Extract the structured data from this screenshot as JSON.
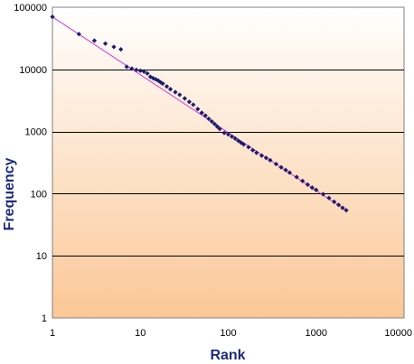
{
  "chart_data": {
    "type": "scatter",
    "title": "",
    "xlabel": "Rank",
    "ylabel": "Frequency",
    "x_scale": "log",
    "y_scale": "log",
    "xlim": [
      1,
      10000
    ],
    "ylim": [
      1,
      100000
    ],
    "x_ticks": [
      "1",
      "10",
      "100",
      "1000",
      "10000"
    ],
    "y_ticks": [
      "1",
      "10",
      "100",
      "1000",
      "10000",
      "100000"
    ],
    "grid": "horizontal major gridlines",
    "legend": "none",
    "colors": {
      "points": "#1c1c6e",
      "trendline": "#d63ad6",
      "axis_title": "#1c2a7e",
      "background_top": "#ffffff",
      "background_bottom": "#fbc796"
    },
    "series": [
      {
        "values": [
          [
            1,
            70000
          ],
          [
            2,
            37000
          ],
          [
            3,
            29000
          ],
          [
            4,
            26000
          ],
          [
            5,
            23000
          ],
          [
            6,
            21000
          ],
          [
            7,
            11000
          ],
          [
            8,
            10300
          ],
          [
            9,
            9800
          ],
          [
            10,
            9500
          ],
          [
            11,
            9200
          ],
          [
            12,
            8600
          ],
          [
            13,
            7600
          ],
          [
            14,
            7200
          ],
          [
            15,
            6900
          ],
          [
            16,
            6600
          ],
          [
            17,
            6200
          ],
          [
            18,
            5900
          ],
          [
            20,
            5300
          ],
          [
            22,
            4800
          ],
          [
            25,
            4300
          ],
          [
            28,
            3900
          ],
          [
            32,
            3400
          ],
          [
            36,
            3000
          ],
          [
            40,
            2700
          ],
          [
            45,
            2300
          ],
          [
            50,
            2000
          ],
          [
            55,
            1800
          ],
          [
            60,
            1600
          ],
          [
            65,
            1450
          ],
          [
            70,
            1320
          ],
          [
            75,
            1200
          ],
          [
            80,
            1100
          ],
          [
            90,
            950
          ],
          [
            100,
            900
          ],
          [
            110,
            830
          ],
          [
            120,
            770
          ],
          [
            130,
            710
          ],
          [
            140,
            660
          ],
          [
            150,
            620
          ],
          [
            170,
            560
          ],
          [
            190,
            500
          ],
          [
            210,
            455
          ],
          [
            240,
            410
          ],
          [
            270,
            375
          ],
          [
            300,
            345
          ],
          [
            350,
            300
          ],
          [
            400,
            265
          ],
          [
            450,
            240
          ],
          [
            500,
            218
          ],
          [
            600,
            185
          ],
          [
            700,
            160
          ],
          [
            800,
            140
          ],
          [
            900,
            125
          ],
          [
            1000,
            115
          ],
          [
            1200,
            98
          ],
          [
            1400,
            85
          ],
          [
            1600,
            74
          ],
          [
            1800,
            66
          ],
          [
            2000,
            59
          ],
          [
            2200,
            54
          ]
        ]
      },
      {
        "type": "line",
        "role": "power-law trendline",
        "values": [
          [
            1,
            70000
          ],
          [
            2200,
            54
          ]
        ]
      }
    ]
  }
}
